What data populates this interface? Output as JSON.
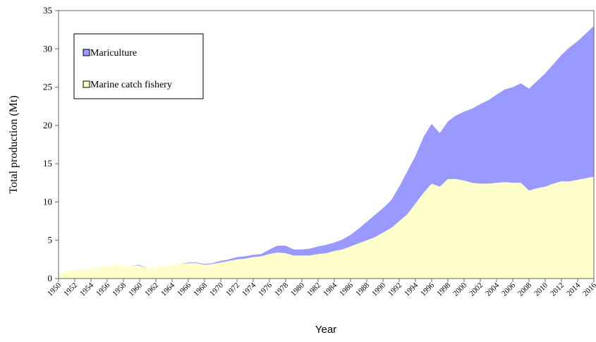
{
  "chart_data": {
    "type": "stacked_area",
    "xlabel": "Year",
    "ylabel": "Total production (Mt)",
    "x": [
      1950,
      1951,
      1952,
      1953,
      1954,
      1955,
      1956,
      1957,
      1958,
      1959,
      1960,
      1961,
      1962,
      1963,
      1964,
      1965,
      1966,
      1967,
      1968,
      1969,
      1970,
      1971,
      1972,
      1973,
      1974,
      1975,
      1976,
      1977,
      1978,
      1979,
      1980,
      1981,
      1982,
      1983,
      1984,
      1985,
      1986,
      1987,
      1988,
      1989,
      1990,
      1991,
      1992,
      1993,
      1994,
      1995,
      1996,
      1997,
      1998,
      1999,
      2000,
      2001,
      2002,
      2003,
      2004,
      2005,
      2006,
      2007,
      2008,
      2009,
      2010,
      2011,
      2012,
      2013,
      2014,
      2015,
      2016
    ],
    "series": [
      {
        "name": "Marine catch fishery",
        "color": "#ffffcc",
        "values": [
          0.6,
          0.9,
          1.1,
          1.2,
          1.3,
          1.5,
          1.6,
          1.8,
          1.6,
          1.7,
          1.7,
          1.3,
          1.4,
          1.6,
          1.8,
          1.9,
          2.0,
          2.0,
          1.8,
          1.9,
          2.1,
          2.3,
          2.5,
          2.6,
          2.8,
          2.9,
          3.2,
          3.4,
          3.3,
          3.0,
          3.0,
          3.0,
          3.2,
          3.3,
          3.6,
          3.8,
          4.2,
          4.6,
          5.0,
          5.4,
          6.0,
          6.6,
          7.5,
          8.4,
          9.8,
          11.2,
          12.4,
          12.0,
          13.0,
          13.0,
          12.8,
          12.5,
          12.4,
          12.4,
          12.5,
          12.6,
          12.5,
          12.5,
          11.5,
          11.8,
          12.0,
          12.4,
          12.7,
          12.7,
          12.9,
          13.1,
          13.3
        ]
      },
      {
        "name": "Mariculture",
        "color": "#9999ff",
        "values": [
          0,
          0,
          0,
          0,
          0,
          0,
          0,
          0,
          0,
          0,
          0.1,
          0,
          0,
          0,
          0,
          0,
          0.1,
          0.1,
          0.1,
          0.1,
          0.2,
          0.2,
          0.3,
          0.3,
          0.3,
          0.3,
          0.6,
          0.9,
          1.0,
          0.8,
          0.8,
          0.9,
          1.0,
          1.1,
          1.1,
          1.3,
          1.5,
          1.9,
          2.4,
          2.9,
          3.2,
          3.6,
          4.5,
          5.6,
          6.2,
          7.3,
          7.8,
          7.0,
          7.5,
          8.3,
          9.0,
          9.7,
          10.4,
          10.9,
          11.5,
          12.1,
          12.5,
          13.0,
          13.3,
          14.0,
          14.8,
          15.6,
          16.5,
          17.5,
          18.1,
          18.9,
          19.7
        ]
      }
    ],
    "xlim": [
      1950,
      2016
    ],
    "xticks": [
      1950,
      1952,
      1954,
      1956,
      1958,
      1960,
      1962,
      1964,
      1966,
      1968,
      1970,
      1972,
      1974,
      1976,
      1978,
      1980,
      1982,
      1984,
      1986,
      1988,
      1990,
      1992,
      1994,
      1996,
      1998,
      2000,
      2002,
      2004,
      2006,
      2008,
      2010,
      2012,
      2014,
      2016
    ],
    "ylim": [
      0,
      35
    ],
    "yticks": [
      0,
      5,
      10,
      15,
      20,
      25,
      30,
      35
    ],
    "legend": "upper left"
  }
}
